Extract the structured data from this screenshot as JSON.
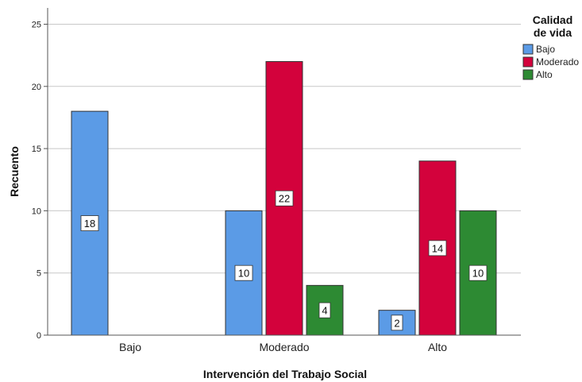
{
  "chart_data": {
    "type": "bar",
    "categories": [
      "Bajo",
      "Moderado",
      "Alto"
    ],
    "series": [
      {
        "name": "Bajo",
        "color": "#5b9be6",
        "values": [
          18,
          10,
          2
        ]
      },
      {
        "name": "Moderado",
        "color": "#d3023c",
        "values": [
          0,
          22,
          14
        ]
      },
      {
        "name": "Alto",
        "color": "#2d8a33",
        "values": [
          0,
          4,
          10
        ]
      }
    ],
    "xlabel": "Intervención del Trabajo Social",
    "ylabel": "Recuento",
    "ylim": [
      0,
      25
    ],
    "yticks": [
      0,
      5,
      10,
      15,
      20,
      25
    ],
    "grid": true,
    "legend": {
      "title_lines": [
        "Calidad",
        "de vida"
      ],
      "placement": "top-right"
    }
  }
}
